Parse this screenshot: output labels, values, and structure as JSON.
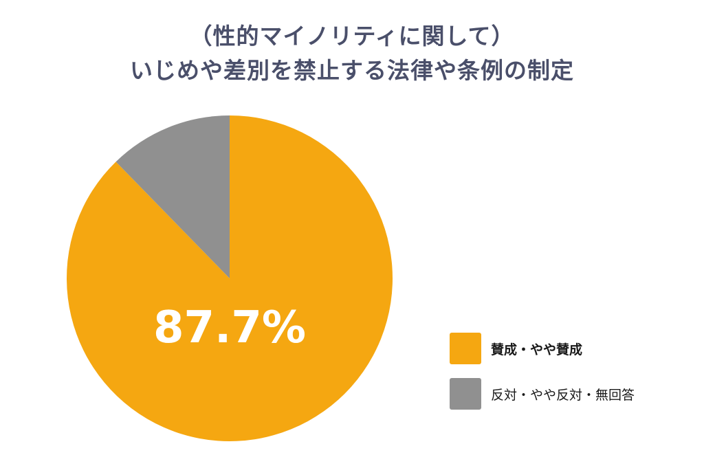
{
  "title": {
    "line1": "（性的マイノリティに関して）",
    "line2": "いじめや差別を禁止する法律や条例の制定"
  },
  "chart_data": {
    "type": "pie",
    "title": "（性的マイノリティに関して） いじめや差別を禁止する法律や条例の制定",
    "slices": [
      {
        "label": "賛成・やや賛成",
        "value": 87.7,
        "color": "#f5a711"
      },
      {
        "label": "反対・やや反対・無回答",
        "value": 12.3,
        "color": "#909090"
      }
    ],
    "data_label": "87.7%",
    "start_angle": "12 o'clock, clockwise",
    "legend": "bottom-right"
  }
}
